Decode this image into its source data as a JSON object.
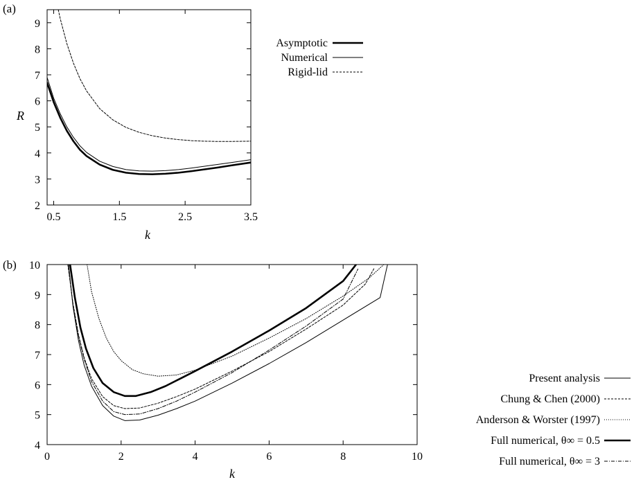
{
  "chart_data": [
    {
      "type": "line",
      "panel_label": "(a)",
      "xlabel": "k",
      "ylabel": "R",
      "xlim": [
        0.4,
        3.5
      ],
      "ylim": [
        2,
        9.5
      ],
      "xticks": [
        "0.5",
        "1.5",
        "2.5",
        "3.5"
      ],
      "xtick_values": [
        0.5,
        1.5,
        2.5,
        3.5
      ],
      "yticks": [
        "2",
        "3",
        "4",
        "5",
        "6",
        "7",
        "8",
        "9"
      ],
      "ytick_values": [
        2,
        3,
        4,
        5,
        6,
        7,
        8,
        9
      ],
      "grid": false,
      "legend_position": "right",
      "series": [
        {
          "name": "Asymptotic",
          "style": "thick-solid",
          "x": [
            0.4,
            0.5,
            0.6,
            0.7,
            0.8,
            0.9,
            1.0,
            1.2,
            1.4,
            1.6,
            1.8,
            2.0,
            2.2,
            2.4,
            2.6,
            2.8,
            3.0,
            3.2,
            3.5
          ],
          "y": [
            6.7,
            5.95,
            5.35,
            4.85,
            4.45,
            4.12,
            3.88,
            3.55,
            3.35,
            3.24,
            3.19,
            3.18,
            3.2,
            3.24,
            3.3,
            3.37,
            3.44,
            3.52,
            3.63
          ]
        },
        {
          "name": "Numerical",
          "style": "thin-solid",
          "x": [
            0.4,
            0.5,
            0.6,
            0.7,
            0.8,
            0.9,
            1.0,
            1.2,
            1.4,
            1.6,
            1.8,
            2.0,
            2.2,
            2.4,
            2.6,
            2.8,
            3.0,
            3.2,
            3.5
          ],
          "y": [
            6.9,
            6.1,
            5.5,
            5.0,
            4.6,
            4.27,
            4.02,
            3.68,
            3.48,
            3.36,
            3.31,
            3.3,
            3.32,
            3.36,
            3.42,
            3.49,
            3.56,
            3.63,
            3.74
          ]
        },
        {
          "name": "Rigid-lid",
          "style": "dashed",
          "x": [
            0.57,
            0.6,
            0.7,
            0.8,
            0.9,
            1.0,
            1.2,
            1.4,
            1.6,
            1.8,
            2.0,
            2.2,
            2.4,
            2.6,
            2.8,
            3.0,
            3.2,
            3.5
          ],
          "y": [
            9.5,
            9.15,
            8.2,
            7.45,
            6.85,
            6.38,
            5.7,
            5.27,
            4.98,
            4.79,
            4.66,
            4.57,
            4.51,
            4.47,
            4.45,
            4.44,
            4.44,
            4.45
          ]
        }
      ]
    },
    {
      "type": "line",
      "panel_label": "(b)",
      "xlabel": "k",
      "ylabel": "",
      "xlim": [
        0,
        10
      ],
      "ylim": [
        4,
        10
      ],
      "xticks": [
        "0",
        "2",
        "4",
        "6",
        "8",
        "10"
      ],
      "xtick_values": [
        0,
        2,
        4,
        6,
        8,
        10
      ],
      "yticks": [
        "4",
        "5",
        "6",
        "7",
        "8",
        "9",
        "10"
      ],
      "ytick_values": [
        4,
        5,
        6,
        7,
        8,
        9,
        10
      ],
      "grid": false,
      "legend_position": "right",
      "series": [
        {
          "name": "Present analysis",
          "style": "thin-solid",
          "x": [
            0.58,
            0.7,
            0.85,
            1.0,
            1.2,
            1.5,
            1.8,
            2.1,
            2.5,
            3.0,
            3.5,
            4.0,
            5.0,
            6.0,
            7.0,
            8.0,
            9.0,
            9.2
          ],
          "y": [
            10.0,
            8.6,
            7.45,
            6.65,
            5.95,
            5.3,
            4.95,
            4.8,
            4.82,
            4.98,
            5.2,
            5.45,
            6.05,
            6.7,
            7.4,
            8.15,
            8.9,
            10.0
          ]
        },
        {
          "name": "Chung & Chen (2000)",
          "style": "dashed",
          "x": [
            0.56,
            0.7,
            0.85,
            1.0,
            1.2,
            1.5,
            1.8,
            2.1,
            2.5,
            3.0,
            3.5,
            4.0,
            5.0,
            6.0,
            7.0,
            8.0,
            8.6,
            8.85
          ],
          "y": [
            10.0,
            8.7,
            7.65,
            6.9,
            6.2,
            5.6,
            5.3,
            5.2,
            5.22,
            5.38,
            5.6,
            5.85,
            6.45,
            7.1,
            7.85,
            8.65,
            9.35,
            9.9
          ]
        },
        {
          "name": "Anderson & Worster (1997)",
          "style": "dotted",
          "x": [
            1.08,
            1.2,
            1.4,
            1.6,
            1.8,
            2.0,
            2.3,
            2.6,
            3.0,
            3.5,
            4.0,
            5.0,
            6.0,
            7.0,
            8.0,
            8.7,
            9.1
          ],
          "y": [
            10.0,
            9.1,
            8.2,
            7.55,
            7.1,
            6.8,
            6.5,
            6.36,
            6.28,
            6.32,
            6.48,
            6.95,
            7.55,
            8.2,
            8.95,
            9.55,
            10.0
          ]
        },
        {
          "name": "Full numerical, θ∞ = 0.5",
          "style": "thick-solid",
          "x": [
            0.62,
            0.75,
            0.9,
            1.05,
            1.25,
            1.5,
            1.8,
            2.1,
            2.4,
            2.8,
            3.2,
            3.6,
            4.0,
            5.0,
            6.0,
            7.0,
            8.0,
            8.35
          ],
          "y": [
            10.0,
            8.9,
            7.9,
            7.2,
            6.55,
            6.05,
            5.75,
            5.62,
            5.62,
            5.75,
            5.95,
            6.2,
            6.45,
            7.1,
            7.8,
            8.55,
            9.45,
            10.0
          ]
        },
        {
          "name": "Full numerical, θ∞ = 3",
          "style": "dashdot",
          "x": [
            0.57,
            0.7,
            0.85,
            1.0,
            1.2,
            1.5,
            1.8,
            2.1,
            2.5,
            3.0,
            3.5,
            4.0,
            5.0,
            6.0,
            7.0,
            8.0,
            8.4
          ],
          "y": [
            10.0,
            8.65,
            7.6,
            6.85,
            6.1,
            5.45,
            5.1,
            5.0,
            5.02,
            5.2,
            5.45,
            5.75,
            6.4,
            7.15,
            7.95,
            8.85,
            9.85
          ]
        }
      ]
    }
  ]
}
